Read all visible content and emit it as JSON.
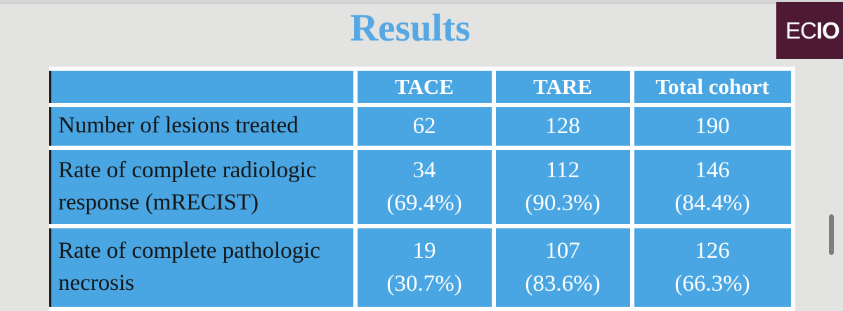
{
  "title": "Results",
  "logo": {
    "prefix": "EC",
    "suffix": "IO"
  },
  "table": {
    "headers": [
      "",
      "TACE",
      "TARE",
      "Total cohort"
    ],
    "rows": [
      {
        "label": "Number of lesions treated",
        "values": [
          "62",
          "128",
          "190"
        ]
      },
      {
        "label": "Rate of complete radiologic response (mRECIST)",
        "values": [
          "34\n(69.4%)",
          "112\n(90.3%)",
          "146\n(84.4%)"
        ]
      },
      {
        "label": "Rate of complete pathologic necrosis",
        "values": [
          "19\n(30.7%)",
          "107\n(83.6%)",
          "126\n(66.3%)"
        ]
      }
    ]
  },
  "colors": {
    "background": "#e3e3e2",
    "table_blue": "#49a6e2",
    "title_blue": "#55a8e3",
    "logo_maroon": "#4e1a33",
    "cell_border_white": "#fdfdfd",
    "table_left_border": "#1a1a1a",
    "scrollbar_gray": "#7e7e7e"
  }
}
